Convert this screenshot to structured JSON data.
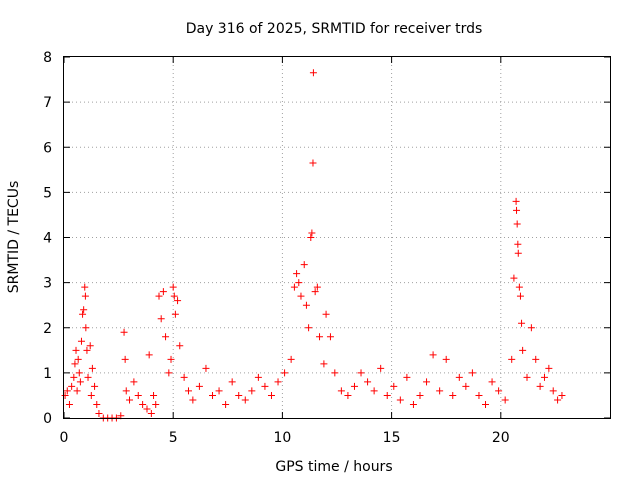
{
  "chart_data": {
    "type": "scatter",
    "title": "Day 316 of 2025, SRMTID for receiver trds",
    "xlabel": "GPS time / hours",
    "ylabel": "SRMTID / TECUs",
    "xlim": [
      0,
      25
    ],
    "ylim": [
      0,
      8
    ],
    "xticks": [
      0,
      5,
      10,
      15,
      20
    ],
    "yticks": [
      0,
      1,
      2,
      3,
      4,
      5,
      6,
      7,
      8
    ],
    "grid": true,
    "marker": "+",
    "color": "#ff0000",
    "series": [
      {
        "name": "SRMTID trds",
        "points": [
          [
            0.05,
            0.5
          ],
          [
            0.15,
            0.6
          ],
          [
            0.25,
            0.3
          ],
          [
            0.35,
            0.7
          ],
          [
            0.45,
            0.9
          ],
          [
            0.5,
            1.2
          ],
          [
            0.55,
            1.5
          ],
          [
            0.6,
            0.6
          ],
          [
            0.65,
            1.3
          ],
          [
            0.7,
            1.0
          ],
          [
            0.75,
            0.8
          ],
          [
            0.8,
            1.7
          ],
          [
            0.85,
            2.3
          ],
          [
            0.9,
            2.4
          ],
          [
            0.95,
            2.9
          ],
          [
            0.98,
            2.7
          ],
          [
            1.0,
            2.0
          ],
          [
            1.05,
            1.5
          ],
          [
            1.1,
            0.9
          ],
          [
            1.2,
            1.6
          ],
          [
            1.25,
            0.5
          ],
          [
            1.3,
            1.1
          ],
          [
            1.4,
            0.7
          ],
          [
            1.5,
            0.3
          ],
          [
            1.6,
            0.1
          ],
          [
            1.8,
            0.0
          ],
          [
            2.0,
            0.0
          ],
          [
            2.2,
            0.0
          ],
          [
            2.4,
            0.0
          ],
          [
            2.6,
            0.05
          ],
          [
            2.75,
            1.9
          ],
          [
            2.8,
            1.3
          ],
          [
            2.85,
            0.6
          ],
          [
            3.0,
            0.4
          ],
          [
            3.2,
            0.8
          ],
          [
            3.4,
            0.5
          ],
          [
            3.6,
            0.3
          ],
          [
            3.8,
            0.2
          ],
          [
            3.9,
            1.4
          ],
          [
            4.0,
            0.1
          ],
          [
            4.1,
            0.5
          ],
          [
            4.2,
            0.3
          ],
          [
            4.35,
            2.7
          ],
          [
            4.45,
            2.2
          ],
          [
            4.55,
            2.8
          ],
          [
            4.65,
            1.8
          ],
          [
            4.8,
            1.0
          ],
          [
            4.9,
            1.3
          ],
          [
            5.0,
            2.9
          ],
          [
            5.05,
            2.7
          ],
          [
            5.1,
            2.3
          ],
          [
            5.2,
            2.6
          ],
          [
            5.3,
            1.6
          ],
          [
            5.5,
            0.9
          ],
          [
            5.7,
            0.6
          ],
          [
            5.9,
            0.4
          ],
          [
            6.2,
            0.7
          ],
          [
            6.5,
            1.1
          ],
          [
            6.8,
            0.5
          ],
          [
            7.1,
            0.6
          ],
          [
            7.4,
            0.3
          ],
          [
            7.7,
            0.8
          ],
          [
            8.0,
            0.5
          ],
          [
            8.3,
            0.4
          ],
          [
            8.6,
            0.6
          ],
          [
            8.9,
            0.9
          ],
          [
            9.2,
            0.7
          ],
          [
            9.5,
            0.5
          ],
          [
            9.8,
            0.8
          ],
          [
            10.1,
            1.0
          ],
          [
            10.4,
            1.3
          ],
          [
            10.55,
            2.9
          ],
          [
            10.65,
            3.2
          ],
          [
            10.75,
            3.0
          ],
          [
            10.85,
            2.7
          ],
          [
            11.0,
            3.4
          ],
          [
            11.1,
            2.5
          ],
          [
            11.2,
            2.0
          ],
          [
            11.3,
            4.0
          ],
          [
            11.35,
            4.1
          ],
          [
            11.4,
            5.65
          ],
          [
            11.42,
            7.65
          ],
          [
            11.5,
            2.8
          ],
          [
            11.6,
            2.9
          ],
          [
            11.7,
            1.8
          ],
          [
            11.9,
            1.2
          ],
          [
            12.0,
            2.3
          ],
          [
            12.2,
            1.8
          ],
          [
            12.4,
            1.0
          ],
          [
            12.7,
            0.6
          ],
          [
            13.0,
            0.5
          ],
          [
            13.3,
            0.7
          ],
          [
            13.6,
            1.0
          ],
          [
            13.9,
            0.8
          ],
          [
            14.2,
            0.6
          ],
          [
            14.5,
            1.1
          ],
          [
            14.8,
            0.5
          ],
          [
            15.1,
            0.7
          ],
          [
            15.4,
            0.4
          ],
          [
            15.7,
            0.9
          ],
          [
            16.0,
            0.3
          ],
          [
            16.3,
            0.5
          ],
          [
            16.6,
            0.8
          ],
          [
            16.9,
            1.4
          ],
          [
            17.2,
            0.6
          ],
          [
            17.5,
            1.3
          ],
          [
            17.8,
            0.5
          ],
          [
            18.1,
            0.9
          ],
          [
            18.4,
            0.7
          ],
          [
            18.7,
            1.0
          ],
          [
            19.0,
            0.5
          ],
          [
            19.3,
            0.3
          ],
          [
            19.6,
            0.8
          ],
          [
            19.9,
            0.6
          ],
          [
            20.2,
            0.4
          ],
          [
            20.5,
            1.3
          ],
          [
            20.6,
            3.1
          ],
          [
            20.7,
            4.8
          ],
          [
            20.72,
            4.6
          ],
          [
            20.75,
            4.3
          ],
          [
            20.78,
            3.85
          ],
          [
            20.8,
            3.65
          ],
          [
            20.85,
            2.9
          ],
          [
            20.9,
            2.7
          ],
          [
            20.95,
            2.1
          ],
          [
            21.0,
            1.5
          ],
          [
            21.2,
            0.9
          ],
          [
            21.4,
            2.0
          ],
          [
            21.6,
            1.3
          ],
          [
            21.8,
            0.7
          ],
          [
            22.0,
            0.9
          ],
          [
            22.2,
            1.1
          ],
          [
            22.4,
            0.6
          ],
          [
            22.6,
            0.4
          ],
          [
            22.8,
            0.5
          ]
        ]
      }
    ]
  }
}
